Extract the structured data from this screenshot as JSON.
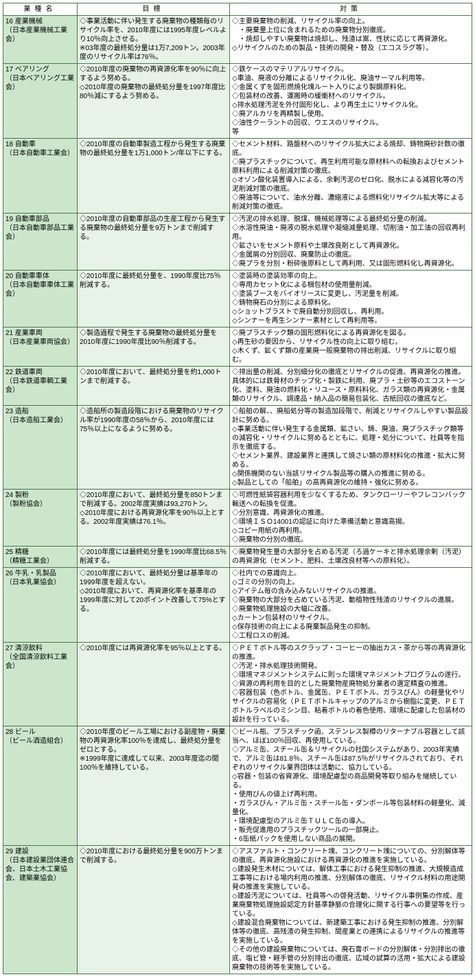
{
  "headers": {
    "industry": "業種名",
    "target": "目標",
    "measure": "対策"
  },
  "rows": [
    {
      "industry": "16 産業機械\n（日本産業機械工業会）",
      "target": "◇事業活動に伴い発生する廃棄物の種類毎のリサイクル率を、2010年度には1995年度レベルより10％向上させる。\n※03年度の最終処分量は1万7,209トン。2003年度のリサイクル率は76％。",
      "measure": "◇主要廃棄物の削減、リサイクル率の向上。\n　・廃棄量上位に含まれるための廃棄物分別徹底。\n　・焼却しやすい廃棄物は焼却し、残渣は嵩、性状に応じて再資源化。\n◇リサイクルのための製品・技術の開発・替及（エコスラグ等）。"
    },
    {
      "industry": "17 ベアリング\n（日本ベアリング工業会）",
      "target": "◇2010年度の廃棄物の再資源化率を90％に向上するよう努める。\n◇2010年度の廃棄物の最終処分量を1997年度比80％減にするよう努める。",
      "measure": "◇鉄ケースのマテリアルリサイクル。\n◇車油、廃液の分離によるリサイクル化、廃油サーマル利用等。\n◇金属くずを固形燃焼化塊ルート入りにより製鋼原料化。\n◇包装材の改善、運搬時の緩衝材へのリサイクル。\n◇排水処理汚泥を外付固形化し、より再生土にリサイクル化。\n◇廃アルカリを再精製し使用。\n◇油性クーラントの回収、ウエスのリサイクル。\n等"
    },
    {
      "industry": "18 自動車\n（日本自動車工業会）",
      "target": "◇2010年度の自動車製造工程から発生する廃棄物の最終処分量を1万1,000トン/年以下にする。",
      "measure": "◇セメント材料、路盤材へのリサイクル拡大による焼却、鋳物廃砂計数の徹底。\n◇廃プラスチックについて、再生利用可能な原材料への転換およびセメント原料利用による削減対策の徹底。\n◇オゾン酸化装置導入による、余剰汚泥のゼロ化、脱水による減容化等の汚泥削減対策の徹底。\n◇廃油等について、油水分離、濃縮液による燃料化リサイクル拡大等による削減対策の徹底。"
    },
    {
      "industry": "19 自動車部品\n（日本自動車部品工業会）",
      "target": "◇2010年度の自動車部品の生産工程から発生する廃棄物の最終処分量を9万トンまで削減する。",
      "measure": "◇汚泥の排水処理、脱煤、機械処理等による最終処分量の削減。\n◇水溶性廃油・廃液の脱水処理や凝縮減量処理、切削油・加工油の回収再利用。\n◇鉱さいをセメント原料や土壌改良剤として再資源化。\n◇金属屑の分別回収、廃棄防止の徹底。\n◇廃プラを分別・粉砕後原料として再利用、又は固形燃料化し再資源化。"
    },
    {
      "industry": "20 自動車車体\n（日本自動車車体工業会）",
      "target": "◇2010年度に最終処分量を、1990年度比75％削減する。",
      "measure": "◇塗装時の塗装効率の向上。\n◇専用カセット化による梱包材の使用量削減。\n◇塗装ブースをバイオリースに変更し、汚泥量を削減。\n◇鋳物廃石の分別による原料化。\n◇ショットブラストで廃自動分別回収し、再利用。\n◇シンナーを再生シンナー素材として再利用等。"
    },
    {
      "industry": "21 産業車両\n（日本産業車両協会）",
      "target": "◇製造過程で発生する廃棄物の最終処分量を2010年度に1990年度比90％削減する。",
      "measure": "◇廃プラスチック類の固形燃料化による再資源化を図る。\n◇再生砂の要因から、リサイクル性の向上に取り組む。\n◇木くず、鉱くず類の産業廃一般廃棄物の排出削減、リサイクルに取り組む。"
    },
    {
      "industry": "22 鉄道車両\n（日本鉄道車輌工業会）",
      "target": "◇2010年度において、最終処分量を約1,000トンまで削減する。",
      "measure": "◇排出量の削減、分別細分化の徹底とリサイクルの促進、再資源化の推進。具体的には鉄骨材のチップ化・製鉄に利用、廃プラ・土砂等のエコストーン化、塗料、廃油の燃料化・リユース・原料料化、ガラス類の再資源化・金属類のリサイクル、調達品・納入品の簡易包装化、古紙回収の徹底など。"
    },
    {
      "industry": "23 造船\n（日本造船工業会）",
      "target": "◇造船所の製造段階における廃棄物のリサイクル率が1990年度の58％から、2010年度には75％以上になるように努める。",
      "measure": "◇船舶の解、、廃船処分等の製造加段階で、削減とリサイクルしやすい製品設計に努める。\n◇事業活動に伴い発生する金属類、鉱さい、鋳、廃油、廃プラスチック類等の減容化・リサイクルに努めるとともに、処理・処分について、社員等を指示を徹底する。\n◇セメント業界、建設業界と連携して焼さい類の原材料化の推進・拡大に努める。\n◇関係機関のない当該リサイクル製品等の購入の推進に努める。\n◇製品としての「船舶」の高再資源化の維持・強化に努める。"
    },
    {
      "industry": "24 製粉\n（製粉協会）",
      "target": "◇2010年度において、最終処分量を850トンまで削減する。2002年度実績は93,270トン。\n◇2010年度における再資源化率を90％以上とする。2002年度実績は76.1％。",
      "measure": "◇可燃性紙袋容器利用を少なくするため、タンクローリーやフレコンバック輸送への転換を促進。\n◇分別意識、再資源化の推進。\n◇環境ＩＳＯ14001の認証に向けた準備活動と意識高揚。\n◇コピー用紙の再利用。\n◇廃棄物の分別の徹底。"
    },
    {
      "industry": "25 精糖\n（精糖工業会）",
      "target": "◇2010年度には最終処分量を1990年度比68.5％削減する。",
      "measure": "◇廃棄物発生量の大部分を占める汚泥（ろ過ケーキと排水処理余剰（汚泥）の再資源化（セメント、肥料、土壌改良材等への原料化）。"
    },
    {
      "industry": "26 牛乳・乳製品\n（日本乳業協会）",
      "target": "◇2010年度において、最終処分量は基準年の1999年度を超えない。\n◇2010年度において、再資源化率を基準年の1999年度に対して20ポイント改善して75%とする。",
      "measure": "◇社内での意識向上。\n◇ゴミの分別の向上。\n◇アイテム毎の含み込みないリサイクルの推進。\n◇廃棄物の大部分を占めている汚泥、動植物性残渣のリサイクルの進展。\n◇廃棄物処理施設の大幅に改善。\n◇カートン包装材のリサイクル。\n◇保存技術の向上による廃棄製品発生の抑制。\n◇工程ロスの削減。"
    },
    {
      "industry": "27 清涼飲料\n（全国清涼飲料工業会）",
      "target": "◇2010年度には再資源化率を95％以上とする。",
      "measure": "◇ＰＥＴボトル等のスクラップ・コーヒーの抽出カス・茶から等の再資源化の推進。\n◇汚泥・排水処理技術開発。\n◇環境マネジメントシステムに則った環境マネジメントプログラムの遂行。\n◇資源の再利用を目的とした廃棄物産廃物処分業者の選定精査の推進。\n◇容器包装（色ボトル、金属缶、ＰＥＴボトル、ガラスびん）の軽量化やリサイクルの容易化（ＰＥＴボトルキャップのアルミから樹脂に変更、ＰＥＴボトルラベルのミシン目、粘着ボトルの着色使用、環境に配慮した包装材の設計を行っている。"
    },
    {
      "industry": "28 ビール\n（ビール酒造組合）",
      "target": "◇2010年度のビール工場における副産物・廃棄物の再資源化率100％を達成し、最終処分量をゼロとする。\n※1999年度に達成して以来、2003年度迄の間100％を維持している。",
      "measure": "◇ビール瓶、プラスチック函、ステンレス製樽のリターナブル容器として該当へ、ほぼ100％回収、再使用している。\n◇アルミ缶、スチール缶＆リサイクルの社国システムがあり、2003年実績で、アルミ缶は81.8％、スチール缶は87.5％がリサイクルされており、それぞれのリサイクル業界団体は活動に、協力している。\n◇容器・包装の省資源化、環境配慮型の商品開発等取り組みを継続している。\n・使用びんの値上げ再利用。\n・ガラスびん・アルミ缶・スチール缶・ダンボール等包装材料の軽量化、減量化。\n・環境配慮型のアルミ缶ＴＵＬＣ缶の導入。\n・販売促進用のプラスチックツールの一部廃止。\n・6缶紙パックを使用しない商品の展開。"
    },
    {
      "industry": "29 建設\n（日本建設業団体連合会、日本土木工業協会、建築業協会）",
      "target": "◇2010年度における最終処分量を900万トンまで削減する。",
      "measure": "◇アスファルト・コンクリート塊、コンクリート塊についての、分別解体等の徹底、再資源化施設における再資源化の推進を実施している。\n◇建設発生木材については、解体工事における発生抑制の推進、大規模造成工事等における場内利用の推進、分別解体の徹底、リサイクル材料の用途開発の推進を実施している。\n◇建設汚泥については、社員等への啓発活動、リサイクル事例集の作成、産業廃棄物処理施設認定方針基準静脈の合理化に関する行事への要望等を行っている。\n◇建設混合廃棄物については、新建築工事における発生抑制の推進、分別解体等の徹底、高残渣の発生抑制、間産業との連携によるリサイクルの推進等を実施している。\n◇その他の建設廃棄物については、廃石膏ボードの分別解体・分別排出の徹底、塩ビ管・軽手管の分別排出の徹底、広域の試算の活用・拡大による建設廃棄物の技術等を実施している。"
    }
  ]
}
